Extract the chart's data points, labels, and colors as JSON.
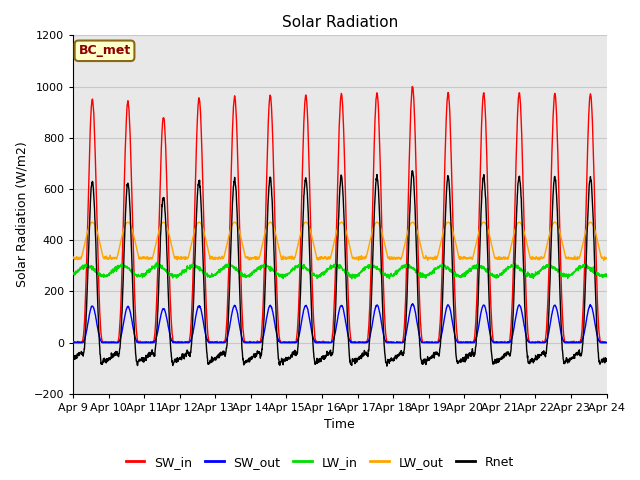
{
  "title": "Solar Radiation",
  "xlabel": "Time",
  "ylabel": "Solar Radiation (W/m2)",
  "ylim": [
    -200,
    1200
  ],
  "n_days": 15,
  "site_label": "BC_met",
  "colors": {
    "SW_in": "red",
    "SW_out": "blue",
    "LW_in": "#00dd00",
    "LW_out": "orange",
    "Rnet": "black"
  },
  "legend_labels": [
    "SW_in",
    "SW_out",
    "LW_in",
    "LW_out",
    "Rnet"
  ],
  "grid_color": "#c8c8c8",
  "bg_color": "#e8e8e8",
  "figsize": [
    6.4,
    4.8
  ],
  "dpi": 100
}
